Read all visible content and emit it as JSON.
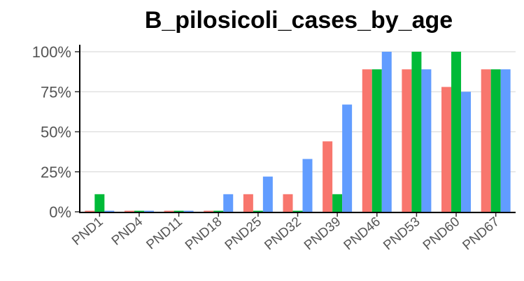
{
  "chart_data": {
    "type": "bar",
    "title": "B_pilosicoli_cases_by_age",
    "xlabel": "",
    "ylabel": "",
    "categories": [
      "PND1",
      "PND4",
      "PND11",
      "PND18",
      "PND25",
      "PND32",
      "PND39",
      "PND46",
      "PND53",
      "PND60",
      "PND67"
    ],
    "series": [
      {
        "color": "#F8766D",
        "values": [
          0,
          0,
          0,
          0,
          11,
          11,
          44,
          89,
          89,
          78,
          89
        ]
      },
      {
        "color": "#00BA38",
        "values": [
          11,
          0,
          0,
          0,
          0,
          0,
          11,
          89,
          100,
          100,
          89
        ]
      },
      {
        "color": "#619CFF",
        "values": [
          0,
          0,
          0,
          11,
          22,
          33,
          67,
          100,
          89,
          75,
          89
        ]
      }
    ],
    "yticks": [
      "0%",
      "25%",
      "50%",
      "75%",
      "100%"
    ],
    "ylim": [
      0,
      100
    ],
    "grid": true,
    "legend": "none"
  }
}
